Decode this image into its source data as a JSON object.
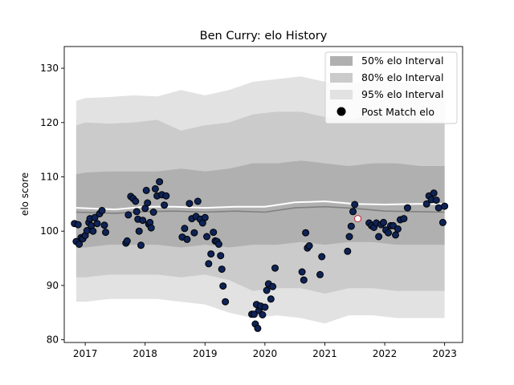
{
  "chart_data": {
    "type": "line",
    "title": "Ben Curry: elo History",
    "xlabel": "",
    "ylabel": "elo score",
    "xlim": [
      2016.65,
      2023.3
    ],
    "ylim": [
      79.5,
      134
    ],
    "x_ticks": [
      2017,
      2018,
      2019,
      2020,
      2021,
      2022,
      2023
    ],
    "y_ticks": [
      80,
      90,
      100,
      110,
      120,
      130
    ],
    "grid": false,
    "legend": {
      "placement": "top-right",
      "entries": [
        {
          "label": "50% elo Interval",
          "color": "#b0b0b0"
        },
        {
          "label": "80% elo Interval",
          "color": "#cbcbcb"
        },
        {
          "label": "95% elo Interval",
          "color": "#e2e2e2"
        },
        {
          "label": "Post Match elo",
          "color": "#000000"
        }
      ]
    },
    "colors": {
      "band50": "#b0b0b0",
      "band80": "#cbcbcb",
      "band95": "#e2e2e2",
      "median_line": "#808080",
      "mean_line": "#ffffff",
      "point_fill": "#0e2356",
      "point_edge": "#000000",
      "highlight_fill": "#ffffff",
      "highlight_edge": "#cc2233"
    },
    "bands": {
      "x": [
        2016.85,
        2017.0,
        2017.4,
        2017.8,
        2018.2,
        2018.6,
        2019.0,
        2019.4,
        2019.8,
        2020.2,
        2020.6,
        2021.0,
        2021.4,
        2021.8,
        2022.2,
        2022.6,
        2023.0
      ],
      "p95_upper": [
        124.0,
        124.5,
        124.7,
        125.0,
        124.8,
        126.0,
        125.0,
        126.0,
        127.5,
        128.0,
        128.5,
        127.5,
        127.0,
        128.0,
        127.5,
        127.0,
        127.0
      ],
      "p80_upper": [
        119.5,
        120.0,
        119.8,
        120.0,
        120.5,
        118.5,
        119.5,
        120.0,
        121.5,
        122.0,
        122.0,
        121.0,
        120.5,
        121.5,
        121.0,
        120.5,
        120.0
      ],
      "p50_upper": [
        110.5,
        110.8,
        111.0,
        111.0,
        111.0,
        111.5,
        111.0,
        111.5,
        112.5,
        112.5,
        113.0,
        112.5,
        112.0,
        112.5,
        112.5,
        112.0,
        112.0
      ],
      "p50_lower": [
        97.0,
        97.0,
        97.5,
        97.5,
        97.5,
        97.0,
        97.5,
        97.0,
        97.5,
        97.5,
        98.0,
        97.5,
        98.0,
        98.0,
        97.5,
        97.5,
        97.5
      ],
      "p80_lower": [
        91.5,
        91.5,
        92.0,
        92.0,
        92.0,
        91.5,
        92.0,
        91.0,
        89.0,
        89.5,
        89.5,
        88.5,
        89.5,
        89.5,
        89.0,
        89.0,
        89.0
      ],
      "p95_lower": [
        87.0,
        87.0,
        87.5,
        87.5,
        87.5,
        87.0,
        86.5,
        85.0,
        84.0,
        84.5,
        84.0,
        83.0,
        84.5,
        84.5,
        84.0,
        84.0,
        84.0
      ]
    },
    "median_line": {
      "x": [
        2016.85,
        2017.5,
        2018.0,
        2018.5,
        2019.0,
        2019.5,
        2020.0,
        2020.5,
        2021.0,
        2021.5,
        2022.0,
        2022.5,
        2023.0
      ],
      "y": [
        103.5,
        103.3,
        103.6,
        103.7,
        103.5,
        103.7,
        103.5,
        104.3,
        104.5,
        104.2,
        103.7,
        103.6,
        103.5
      ]
    },
    "mean_line": {
      "x": [
        2016.85,
        2017.5,
        2018.0,
        2018.5,
        2019.0,
        2019.5,
        2020.0,
        2020.5,
        2021.0,
        2021.5,
        2022.0,
        2022.5,
        2023.0
      ],
      "y": [
        104.3,
        104.0,
        104.5,
        104.5,
        104.3,
        104.5,
        104.5,
        105.3,
        105.5,
        105.0,
        104.9,
        105.0,
        105.0
      ]
    },
    "points": {
      "x": [
        2016.82,
        2016.85,
        2016.88,
        2016.9,
        2016.93,
        2016.96,
        2017.0,
        2017.03,
        2017.06,
        2017.08,
        2017.1,
        2017.13,
        2017.16,
        2017.2,
        2017.24,
        2017.28,
        2017.32,
        2017.34,
        2017.68,
        2017.7,
        2017.72,
        2017.76,
        2017.8,
        2017.84,
        2017.86,
        2017.88,
        2017.9,
        2017.93,
        2017.96,
        2018.0,
        2018.02,
        2018.04,
        2018.06,
        2018.08,
        2018.1,
        2018.14,
        2018.17,
        2018.2,
        2018.24,
        2018.28,
        2018.32,
        2018.35,
        2018.62,
        2018.66,
        2018.7,
        2018.74,
        2018.78,
        2018.82,
        2018.85,
        2018.88,
        2018.92,
        2018.96,
        2019.0,
        2019.03,
        2019.06,
        2019.1,
        2019.14,
        2019.17,
        2019.2,
        2019.23,
        2019.26,
        2019.28,
        2019.3,
        2019.34,
        2019.78,
        2019.82,
        2019.84,
        2019.86,
        2019.88,
        2019.9,
        2019.93,
        2019.96,
        2020.0,
        2020.03,
        2020.06,
        2020.1,
        2020.13,
        2020.17,
        2020.62,
        2020.65,
        2020.68,
        2020.71,
        2020.74,
        2020.92,
        2020.95,
        2021.38,
        2021.41,
        2021.44,
        2021.47,
        2021.5,
        2021.74,
        2021.78,
        2021.82,
        2021.86,
        2021.9,
        2021.94,
        2021.98,
        2022.02,
        2022.06,
        2022.1,
        2022.14,
        2022.18,
        2022.22,
        2022.26,
        2022.32,
        2022.38,
        2022.7,
        2022.74,
        2022.78,
        2022.82,
        2022.86,
        2022.9,
        2022.97,
        2023.0
      ],
      "y": [
        101.4,
        98.1,
        101.2,
        97.6,
        98.8,
        98.6,
        99.2,
        100.1,
        101.6,
        102.3,
        101.0,
        100.0,
        102.5,
        101.4,
        103.2,
        103.8,
        101.1,
        99.8,
        97.8,
        98.2,
        103.0,
        106.4,
        106.0,
        105.5,
        103.6,
        102.2,
        100.0,
        97.4,
        102.0,
        104.2,
        107.5,
        105.2,
        101.3,
        101.6,
        100.6,
        103.5,
        107.8,
        106.5,
        109.1,
        106.7,
        104.8,
        106.5,
        98.9,
        100.5,
        98.5,
        105.1,
        102.3,
        99.7,
        102.7,
        105.5,
        102.2,
        101.5,
        102.5,
        99.0,
        94.0,
        95.8,
        99.8,
        98.2,
        98.1,
        97.6,
        95.5,
        93.0,
        89.9,
        87.0,
        84.7,
        84.7,
        82.9,
        86.5,
        82.1,
        85.4,
        86.2,
        84.6,
        86.0,
        89.1,
        90.3,
        87.5,
        89.8,
        93.2,
        92.5,
        91.0,
        99.7,
        96.9,
        97.3,
        92.0,
        95.3,
        96.3,
        99.0,
        100.9,
        103.6,
        104.9,
        101.5,
        101.0,
        100.7,
        101.5,
        99.0,
        101.2,
        101.6,
        100.2,
        99.7,
        101.0,
        101.0,
        99.3,
        100.4,
        102.1,
        102.3,
        104.3,
        105.0,
        106.5,
        105.8,
        107.0,
        105.7,
        104.3,
        101.6,
        104.6
      ]
    },
    "highlight_point": {
      "x": 2021.55,
      "y": 102.3
    }
  }
}
